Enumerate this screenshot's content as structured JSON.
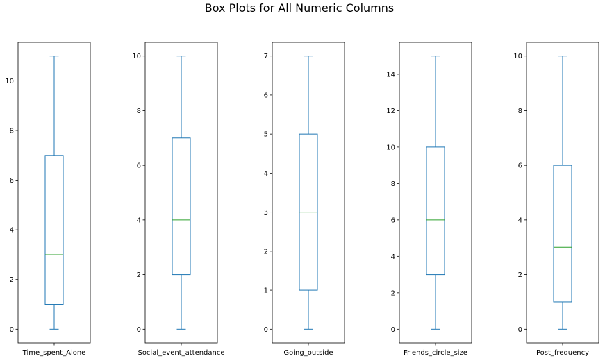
{
  "title": "Box Plots for All Numeric Columns",
  "colors": {
    "box": "#1f77b4",
    "median": "#2ca02c",
    "frame": "#000000"
  },
  "chart_data": [
    {
      "type": "box",
      "xlabel": "Time_spent_Alone",
      "ylim": [
        -0.55,
        11.55
      ],
      "yticks": [
        0,
        2,
        4,
        6,
        8,
        10
      ],
      "box": {
        "whislo": 0,
        "q1": 1,
        "median": 3,
        "q3": 7,
        "whishi": 11
      }
    },
    {
      "type": "box",
      "xlabel": "Social_event_attendance",
      "ylim": [
        -0.5,
        10.5
      ],
      "yticks": [
        0,
        2,
        4,
        6,
        8,
        10
      ],
      "box": {
        "whislo": 0,
        "q1": 2,
        "median": 4,
        "q3": 7,
        "whishi": 10
      }
    },
    {
      "type": "box",
      "xlabel": "Going_outside",
      "ylim": [
        -0.35,
        7.35
      ],
      "yticks": [
        0,
        1,
        2,
        3,
        4,
        5,
        6,
        7
      ],
      "box": {
        "whislo": 0,
        "q1": 1,
        "median": 3,
        "q3": 5,
        "whishi": 7
      }
    },
    {
      "type": "box",
      "xlabel": "Friends_circle_size",
      "ylim": [
        -0.75,
        15.75
      ],
      "yticks": [
        0,
        2,
        4,
        6,
        8,
        10,
        12,
        14
      ],
      "box": {
        "whislo": 0,
        "q1": 3,
        "median": 6,
        "q3": 10,
        "whishi": 15
      }
    },
    {
      "type": "box",
      "xlabel": "Post_frequency",
      "ylim": [
        -0.5,
        10.5
      ],
      "yticks": [
        0,
        2,
        4,
        6,
        8,
        10
      ],
      "box": {
        "whislo": 0,
        "q1": 1,
        "median": 3,
        "q3": 6,
        "whishi": 10
      }
    }
  ]
}
